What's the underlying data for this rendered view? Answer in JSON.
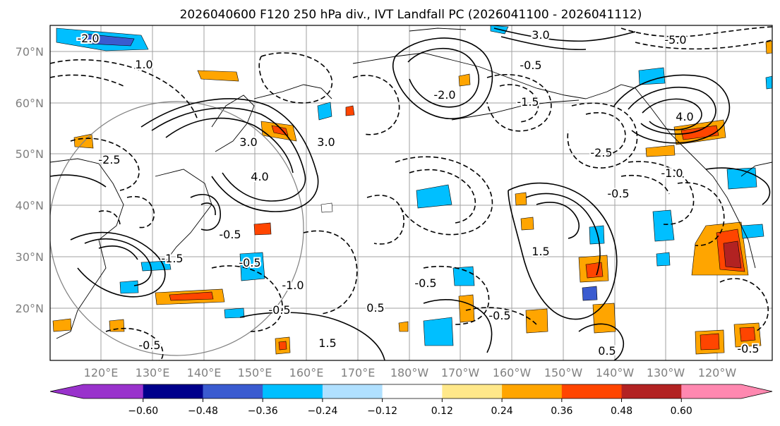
{
  "title": "2026040600 F120 250 hPa div., IVT Landfall PC (2026041100 - 2026041112)",
  "lat_labels": [
    "70°N",
    "60°N",
    "50°N",
    "40°N",
    "30°N",
    "20°N"
  ],
  "lon_labels": [
    "120°E",
    "130°E",
    "140°E",
    "150°E",
    "160°E",
    "170°E",
    "180°W",
    "170°W",
    "160°W",
    "150°W",
    "140°W",
    "130°W",
    "120°W"
  ],
  "colorbar": {
    "ticks": [
      "−0.60",
      "−0.48",
      "−0.36",
      "−0.24",
      "−0.12",
      "0.12",
      "0.24",
      "0.36",
      "0.48",
      "0.60"
    ],
    "colors": [
      "#9932cc",
      "#00008b",
      "#3a5bd0",
      "#00bfff",
      "#b0e0ff",
      "#ffffff",
      "#ffe88a",
      "#ffa500",
      "#ff4500",
      "#b22222",
      "#ff88b0"
    ]
  },
  "contour_labels": {
    "japan_sea": "3.0",
    "east_of_kamchatka": "3.0",
    "japan_east": "4.0",
    "japan_south": "-0.5",
    "pacific_south": "0.5",
    "gulf_alaska": "4.0",
    "central_north": "1.0",
    "aleutian": "-0.5",
    "central_pacific": "1.5",
    "neg_west": "-0.5",
    "neg_central": "-0.5",
    "neg_east": "-1.0",
    "neg_far_east": "-0.5",
    "bering": "-1.5",
    "arctic": "-5.0",
    "mid_north": "3.0",
    "kamchatka_neg": "-2.0",
    "hawaii": "0.5",
    "tropics_west": "-0.5",
    "tropics_west_2": "1.5",
    "okhotsk": "-2.5",
    "yellow_sea": "-1.5",
    "asia_west": "-2.0",
    "alaska_east": "-1.0",
    "gulf_south": "-2.5",
    "bc_coast": "-0.5",
    "mexico_w": "-0.5",
    "kuroshio": "-0.5"
  }
}
